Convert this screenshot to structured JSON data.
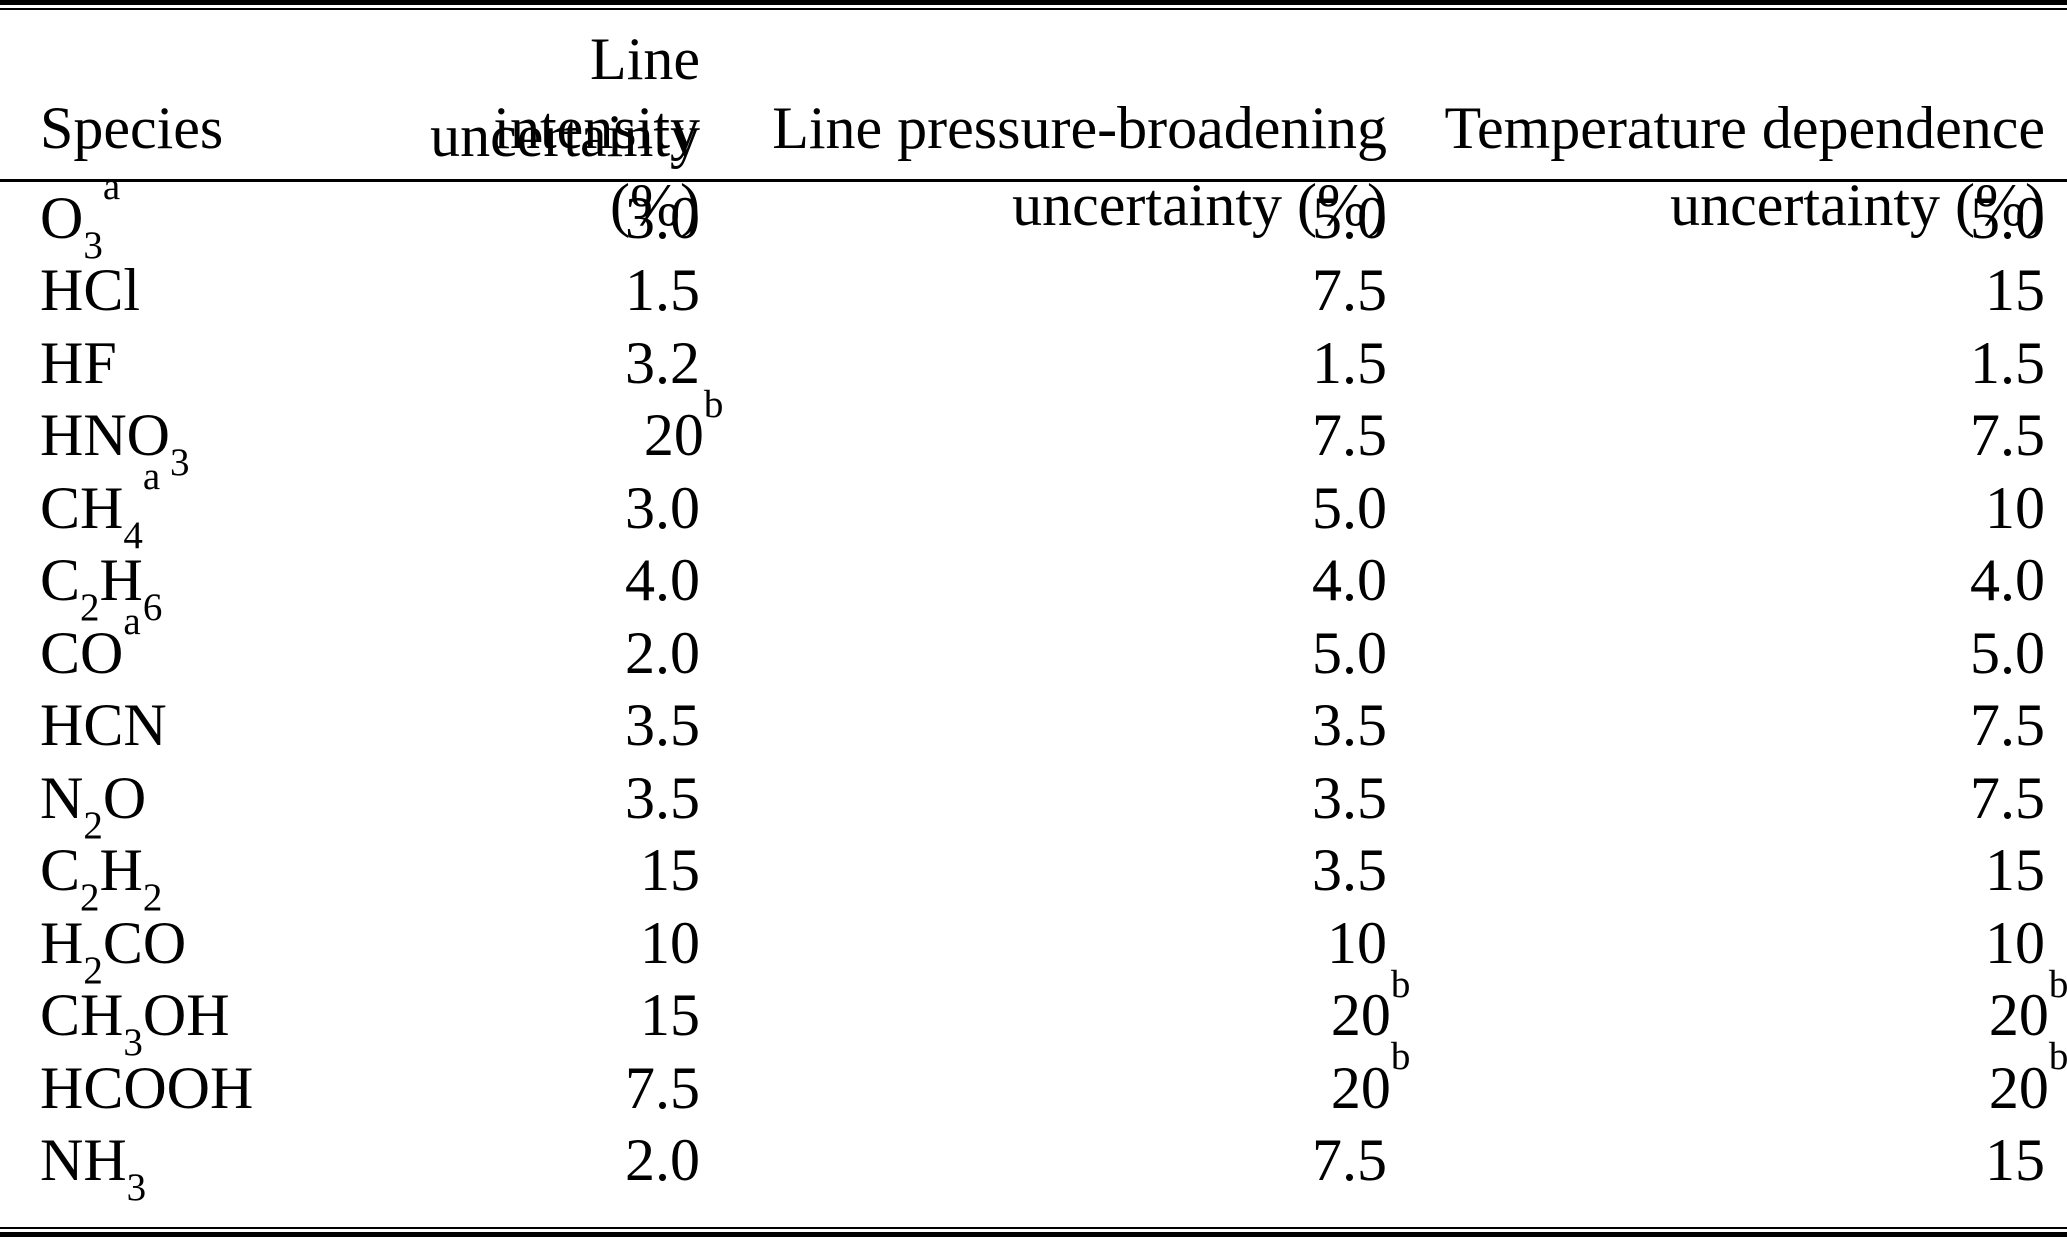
{
  "table": {
    "columns": [
      {
        "line1": "Species",
        "line2": ""
      },
      {
        "line1": "Line intensity",
        "line2": "uncertainty (%)"
      },
      {
        "line1": "Line pressure-broadening",
        "line2": "uncertainty (%)"
      },
      {
        "line1": "Temperature dependence",
        "line2": "uncertainty (%)"
      }
    ],
    "rows": [
      {
        "species": "O_{3}^{a}",
        "intensity": "3.0",
        "pressure": "5.0",
        "temperature": "5.0"
      },
      {
        "species": "HCl",
        "intensity": "1.5",
        "pressure": "7.5",
        "temperature": "15"
      },
      {
        "species": "HF",
        "intensity": "3.2",
        "pressure": "1.5",
        "temperature": "1.5"
      },
      {
        "species": "HNO_{3}",
        "intensity": "20^{b}",
        "pressure": "7.5",
        "temperature": "7.5"
      },
      {
        "species": "CH_{4}^{a}",
        "intensity": "3.0",
        "pressure": "5.0",
        "temperature": "10"
      },
      {
        "species": "C_{2}H_{6}",
        "intensity": "4.0",
        "pressure": "4.0",
        "temperature": "4.0"
      },
      {
        "species": "CO^{a}",
        "intensity": "2.0",
        "pressure": "5.0",
        "temperature": "5.0"
      },
      {
        "species": "HCN",
        "intensity": "3.5",
        "pressure": "3.5",
        "temperature": "7.5"
      },
      {
        "species": "N_{2}O",
        "intensity": "3.5",
        "pressure": "3.5",
        "temperature": "7.5"
      },
      {
        "species": "C_{2}H_{2}",
        "intensity": "15",
        "pressure": "3.5",
        "temperature": "15"
      },
      {
        "species": "H_{2}CO",
        "intensity": "10",
        "pressure": "10",
        "temperature": "10"
      },
      {
        "species": "CH_{3}OH",
        "intensity": "15",
        "pressure": "20^{b}",
        "temperature": "20^{b}"
      },
      {
        "species": "HCOOH",
        "intensity": "7.5",
        "pressure": "20^{b}",
        "temperature": "20^{b}"
      },
      {
        "species": "NH_{3}",
        "intensity": "2.0",
        "pressure": "7.5",
        "temperature": "15"
      }
    ],
    "colors": {
      "text": "#000000",
      "background": "#ffffff",
      "rule": "#000000"
    }
  }
}
